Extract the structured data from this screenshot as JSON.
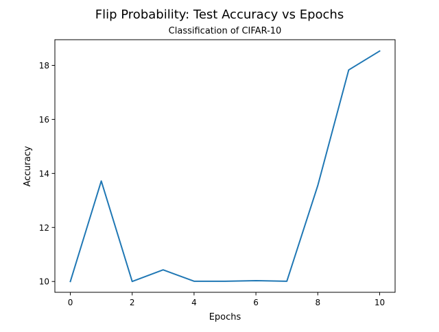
{
  "chart_data": {
    "type": "line",
    "title": "Flip Probability: Test Accuracy vs Epochs",
    "subtitle": "Classification of CIFAR-10",
    "xlabel": "Epochs",
    "ylabel": "Accuracy",
    "x": [
      0,
      1,
      2,
      3,
      4,
      5,
      6,
      7,
      8,
      9,
      10
    ],
    "series": [
      {
        "values": [
          10.0,
          13.72,
          10.0,
          10.43,
          10.01,
          10.01,
          10.03,
          10.01,
          13.55,
          17.83,
          18.53
        ],
        "color": "#1f77b4"
      }
    ],
    "xlim": [
      -0.5,
      10.5
    ],
    "ylim": [
      9.6,
      18.95
    ],
    "xticks": [
      "0",
      "2",
      "4",
      "6",
      "8",
      "10"
    ],
    "yticks": [
      "10",
      "12",
      "14",
      "16",
      "18"
    ],
    "grid": false,
    "legend": "none"
  }
}
